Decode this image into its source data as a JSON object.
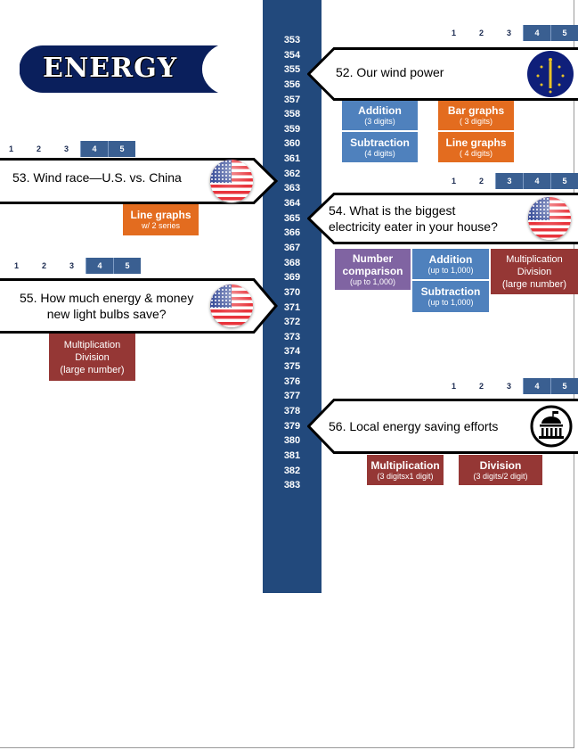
{
  "title": "ENERGY",
  "pages": [
    "353",
    "354",
    "355",
    "356",
    "357",
    "358",
    "359",
    "360",
    "361",
    "362",
    "363",
    "364",
    "365",
    "366",
    "367",
    "368",
    "369",
    "370",
    "371",
    "372",
    "373",
    "374",
    "375",
    "376",
    "377",
    "378",
    "379",
    "380",
    "381",
    "382",
    "383"
  ],
  "levels": [
    "1",
    "2",
    "3",
    "4",
    "5"
  ],
  "colors": {
    "spine": "#22497c",
    "level_on": "#3a5f91",
    "blue": "#4f81bd",
    "orange": "#e36c1f",
    "purple": "#8064a2",
    "red": "#953735",
    "logo": "#0a1f5c"
  },
  "lessons": [
    {
      "title": "52. Our wind power",
      "icon": "indiana-flag-icon",
      "levels_on": [
        4,
        5
      ],
      "tiles": [
        {
          "label": "Addition",
          "sub": "(3 digits)"
        },
        {
          "label": "Subtraction",
          "sub": "(4 digits)"
        },
        {
          "label": "Bar graphs",
          "sub": "( 3 digits)"
        },
        {
          "label": "Line graphs",
          "sub": "( 4 digits)"
        }
      ]
    },
    {
      "title": "53. Wind race—U.S. vs. China",
      "icon": "us-flag-icon",
      "levels_on": [
        4,
        5
      ],
      "tiles": [
        {
          "label": "Line graphs",
          "sub": "w/ 2 series"
        }
      ]
    },
    {
      "title_line1": "54. What is the biggest",
      "title_line2": "electricity eater in your house?",
      "icon": "us-flag-icon",
      "levels_on": [
        3,
        4,
        5
      ],
      "tiles": [
        {
          "label": "Number comparison",
          "sub": "(up to 1,000)"
        },
        {
          "label": "Addition",
          "sub": "(up to 1,000)"
        },
        {
          "label": "Subtraction",
          "sub": "(up to 1,000)"
        },
        {
          "label1": "Multiplication",
          "label2": "Division",
          "sub": "(large number)"
        }
      ]
    },
    {
      "title_line1": "55. How much energy & money",
      "title_line2": "new light bulbs save?",
      "icon": "us-flag-icon",
      "levels_on": [
        4,
        5
      ],
      "tiles": [
        {
          "label1": "Multiplication",
          "label2": "Division",
          "sub": "(large number)"
        }
      ]
    },
    {
      "title": "56. Local energy saving efforts",
      "icon": "capitol-building-icon",
      "levels_on": [
        4,
        5
      ],
      "tiles": [
        {
          "label": "Multiplication",
          "sub": "(3 digitsx1 digit)"
        },
        {
          "label": "Division",
          "sub": "(3 digits/2 digit)"
        }
      ]
    }
  ]
}
